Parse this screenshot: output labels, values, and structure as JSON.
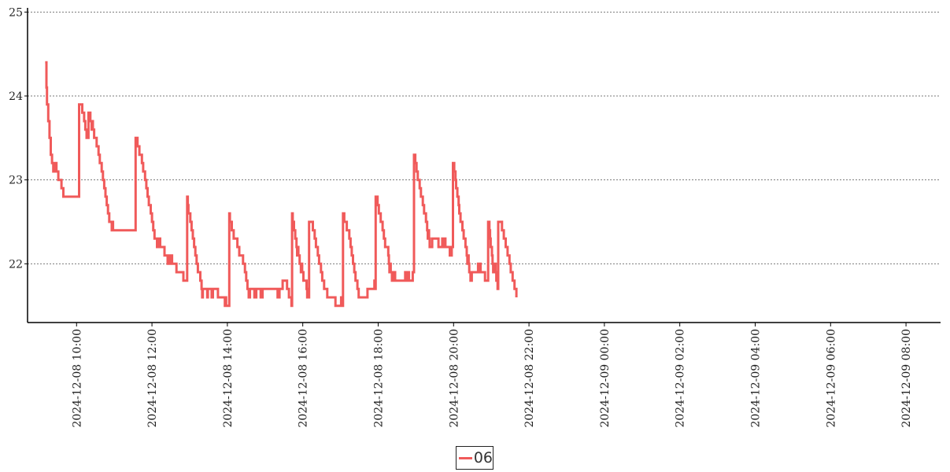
{
  "chart_data": {
    "type": "line",
    "title": "",
    "xlabel": "",
    "ylabel": "",
    "ylim": [
      21.3,
      25.05
    ],
    "yticks": [
      "22",
      "23",
      "24",
      "25"
    ],
    "xlim": [
      "2024-12-08 08:42",
      "2024-12-09 08:55"
    ],
    "xticks": [
      "2024-12-08 10:00",
      "2024-12-08 12:00",
      "2024-12-08 14:00",
      "2024-12-08 16:00",
      "2024-12-08 18:00",
      "2024-12-08 20:00",
      "2024-12-08 22:00",
      "2024-12-09 00:00",
      "2024-12-09 02:00",
      "2024-12-09 04:00",
      "2024-12-09 06:00",
      "2024-12-09 08:00"
    ],
    "grid": "horizontal dotted",
    "legend_position": "bottom-center",
    "series": [
      {
        "name": "06",
        "color": "#f05a5a",
        "points": [
          [
            "2024-12-08 09:10",
            24.4
          ],
          [
            "2024-12-08 09:12",
            24.1
          ],
          [
            "2024-12-08 09:13",
            23.9
          ],
          [
            "2024-12-08 09:15",
            23.7
          ],
          [
            "2024-12-08 09:17",
            23.5
          ],
          [
            "2024-12-08 09:19",
            23.3
          ],
          [
            "2024-12-08 09:21",
            23.2
          ],
          [
            "2024-12-08 09:23",
            23.1
          ],
          [
            "2024-12-08 09:24",
            23.2
          ],
          [
            "2024-12-08 09:25",
            23.1
          ],
          [
            "2024-12-08 09:27",
            23.2
          ],
          [
            "2024-12-08 09:28",
            23.1
          ],
          [
            "2024-12-08 09:31",
            23.0
          ],
          [
            "2024-12-08 09:36",
            22.9
          ],
          [
            "2024-12-08 09:39",
            22.8
          ],
          [
            "2024-12-08 10:04",
            23.9
          ],
          [
            "2024-12-08 10:09",
            23.8
          ],
          [
            "2024-12-08 10:12",
            23.7
          ],
          [
            "2024-12-08 10:14",
            23.6
          ],
          [
            "2024-12-08 10:16",
            23.5
          ],
          [
            "2024-12-08 10:19",
            23.8
          ],
          [
            "2024-12-08 10:22",
            23.7
          ],
          [
            "2024-12-08 10:24",
            23.6
          ],
          [
            "2024-12-08 10:25",
            23.7
          ],
          [
            "2024-12-08 10:26",
            23.6
          ],
          [
            "2024-12-08 10:28",
            23.5
          ],
          [
            "2024-12-08 10:32",
            23.4
          ],
          [
            "2024-12-08 10:35",
            23.3
          ],
          [
            "2024-12-08 10:37",
            23.2
          ],
          [
            "2024-12-08 10:40",
            23.1
          ],
          [
            "2024-12-08 10:42",
            23.0
          ],
          [
            "2024-12-08 10:44",
            22.9
          ],
          [
            "2024-12-08 10:46",
            22.8
          ],
          [
            "2024-12-08 10:48",
            22.7
          ],
          [
            "2024-12-08 10:50",
            22.6
          ],
          [
            "2024-12-08 10:52",
            22.5
          ],
          [
            "2024-12-08 10:56",
            22.4
          ],
          [
            "2024-12-08 10:57",
            22.5
          ],
          [
            "2024-12-08 10:58",
            22.4
          ],
          [
            "2024-12-08 10:59",
            22.4
          ],
          [
            "2024-12-08 11:34",
            23.5
          ],
          [
            "2024-12-08 11:37",
            23.4
          ],
          [
            "2024-12-08 11:40",
            23.3
          ],
          [
            "2024-12-08 11:44",
            23.2
          ],
          [
            "2024-12-08 11:46",
            23.1
          ],
          [
            "2024-12-08 11:49",
            23.0
          ],
          [
            "2024-12-08 11:51",
            22.9
          ],
          [
            "2024-12-08 11:53",
            22.8
          ],
          [
            "2024-12-08 11:55",
            22.7
          ],
          [
            "2024-12-08 11:58",
            22.6
          ],
          [
            "2024-12-08 12:00",
            22.5
          ],
          [
            "2024-12-08 12:02",
            22.4
          ],
          [
            "2024-12-08 12:04",
            22.3
          ],
          [
            "2024-12-08 12:08",
            22.2
          ],
          [
            "2024-12-08 12:09",
            22.3
          ],
          [
            "2024-12-08 12:10",
            22.2
          ],
          [
            "2024-12-08 12:12",
            22.3
          ],
          [
            "2024-12-08 12:13",
            22.2
          ],
          [
            "2024-12-08 12:20",
            22.1
          ],
          [
            "2024-12-08 12:25",
            22.0
          ],
          [
            "2024-12-08 12:26",
            22.1
          ],
          [
            "2024-12-08 12:29",
            22.0
          ],
          [
            "2024-12-08 12:30",
            22.1
          ],
          [
            "2024-12-08 12:32",
            22.0
          ],
          [
            "2024-12-08 12:39",
            21.9
          ],
          [
            "2024-12-08 12:50",
            21.8
          ],
          [
            "2024-12-08 12:55",
            21.8
          ],
          [
            "2024-12-08 12:56",
            22.8
          ],
          [
            "2024-12-08 12:57",
            22.7
          ],
          [
            "2024-12-08 12:58",
            22.6
          ],
          [
            "2024-12-08 13:01",
            22.5
          ],
          [
            "2024-12-08 13:03",
            22.4
          ],
          [
            "2024-12-08 13:05",
            22.3
          ],
          [
            "2024-12-08 13:07",
            22.2
          ],
          [
            "2024-12-08 13:09",
            22.1
          ],
          [
            "2024-12-08 13:11",
            22.0
          ],
          [
            "2024-12-08 13:13",
            21.9
          ],
          [
            "2024-12-08 13:17",
            21.8
          ],
          [
            "2024-12-08 13:19",
            21.7
          ],
          [
            "2024-12-08 13:20",
            21.6
          ],
          [
            "2024-12-08 13:21",
            21.7
          ],
          [
            "2024-12-08 13:28",
            21.6
          ],
          [
            "2024-12-08 13:29",
            21.7
          ],
          [
            "2024-12-08 13:35",
            21.6
          ],
          [
            "2024-12-08 13:37",
            21.7
          ],
          [
            "2024-12-08 13:45",
            21.6
          ],
          [
            "2024-12-08 13:56",
            21.5
          ],
          [
            "2024-12-08 13:57",
            21.6
          ],
          [
            "2024-12-08 13:58",
            21.5
          ],
          [
            "2024-12-08 14:03",
            22.6
          ],
          [
            "2024-12-08 14:04",
            22.5
          ],
          [
            "2024-12-08 14:07",
            22.4
          ],
          [
            "2024-12-08 14:10",
            22.3
          ],
          [
            "2024-12-08 14:16",
            22.2
          ],
          [
            "2024-12-08 14:19",
            22.1
          ],
          [
            "2024-12-08 14:25",
            22.0
          ],
          [
            "2024-12-08 14:28",
            21.9
          ],
          [
            "2024-12-08 14:30",
            21.8
          ],
          [
            "2024-12-08 14:32",
            21.7
          ],
          [
            "2024-12-08 14:34",
            21.6
          ],
          [
            "2024-12-08 14:36",
            21.7
          ],
          [
            "2024-12-08 14:43",
            21.6
          ],
          [
            "2024-12-08 14:46",
            21.7
          ],
          [
            "2024-12-08 14:53",
            21.6
          ],
          [
            "2024-12-08 14:56",
            21.7
          ],
          [
            "2024-12-08 15:20",
            21.6
          ],
          [
            "2024-12-08 15:23",
            21.7
          ],
          [
            "2024-12-08 15:28",
            21.8
          ],
          [
            "2024-12-08 15:35",
            21.7
          ],
          [
            "2024-12-08 15:38",
            21.6
          ],
          [
            "2024-12-08 15:42",
            21.5
          ],
          [
            "2024-12-08 15:43",
            22.6
          ],
          [
            "2024-12-08 15:44",
            22.5
          ],
          [
            "2024-12-08 15:46",
            22.4
          ],
          [
            "2024-12-08 15:48",
            22.3
          ],
          [
            "2024-12-08 15:50",
            22.2
          ],
          [
            "2024-12-08 15:51",
            22.1
          ],
          [
            "2024-12-08 15:52",
            22.2
          ],
          [
            "2024-12-08 15:53",
            22.1
          ],
          [
            "2024-12-08 15:55",
            22.0
          ],
          [
            "2024-12-08 15:57",
            21.9
          ],
          [
            "2024-12-08 15:58",
            22.0
          ],
          [
            "2024-12-08 15:59",
            21.9
          ],
          [
            "2024-12-08 16:01",
            21.8
          ],
          [
            "2024-12-08 16:06",
            21.7
          ],
          [
            "2024-12-08 16:07",
            21.6
          ],
          [
            "2024-12-08 16:10",
            22.5
          ],
          [
            "2024-12-08 16:16",
            22.4
          ],
          [
            "2024-12-08 16:19",
            22.3
          ],
          [
            "2024-12-08 16:21",
            22.2
          ],
          [
            "2024-12-08 16:24",
            22.1
          ],
          [
            "2024-12-08 16:26",
            22.0
          ],
          [
            "2024-12-08 16:29",
            21.9
          ],
          [
            "2024-12-08 16:31",
            21.8
          ],
          [
            "2024-12-08 16:34",
            21.7
          ],
          [
            "2024-12-08 16:39",
            21.6
          ],
          [
            "2024-12-08 16:52",
            21.5
          ],
          [
            "2024-12-08 17:01",
            21.6
          ],
          [
            "2024-12-08 17:02",
            21.5
          ],
          [
            "2024-12-08 17:04",
            22.6
          ],
          [
            "2024-12-08 17:06",
            22.5
          ],
          [
            "2024-12-08 17:10",
            22.4
          ],
          [
            "2024-12-08 17:14",
            22.3
          ],
          [
            "2024-12-08 17:16",
            22.2
          ],
          [
            "2024-12-08 17:18",
            22.1
          ],
          [
            "2024-12-08 17:20",
            22.0
          ],
          [
            "2024-12-08 17:22",
            21.9
          ],
          [
            "2024-12-08 17:24",
            21.8
          ],
          [
            "2024-12-08 17:27",
            21.7
          ],
          [
            "2024-12-08 17:29",
            21.6
          ],
          [
            "2024-12-08 17:43",
            21.7
          ],
          [
            "2024-12-08 17:51",
            21.7
          ],
          [
            "2024-12-08 17:54",
            21.8
          ],
          [
            "2024-12-08 17:55",
            21.7
          ],
          [
            "2024-12-08 17:56",
            22.8
          ],
          [
            "2024-12-08 17:59",
            22.7
          ],
          [
            "2024-12-08 18:01",
            22.6
          ],
          [
            "2024-12-08 18:04",
            22.5
          ],
          [
            "2024-12-08 18:07",
            22.4
          ],
          [
            "2024-12-08 18:09",
            22.3
          ],
          [
            "2024-12-08 18:11",
            22.2
          ],
          [
            "2024-12-08 18:16",
            22.1
          ],
          [
            "2024-12-08 18:17",
            22.0
          ],
          [
            "2024-12-08 18:18",
            21.9
          ],
          [
            "2024-12-08 18:19",
            22.0
          ],
          [
            "2024-12-08 18:20",
            21.9
          ],
          [
            "2024-12-08 18:22",
            21.8
          ],
          [
            "2024-12-08 18:24",
            21.9
          ],
          [
            "2024-12-08 18:25",
            21.8
          ],
          [
            "2024-12-08 18:26",
            21.9
          ],
          [
            "2024-12-08 18:27",
            21.8
          ],
          [
            "2024-12-08 18:43",
            21.9
          ],
          [
            "2024-12-08 18:46",
            21.8
          ],
          [
            "2024-12-08 18:48",
            21.9
          ],
          [
            "2024-12-08 18:49",
            21.8
          ],
          [
            "2024-12-08 18:55",
            21.9
          ],
          [
            "2024-12-08 18:57",
            23.3
          ],
          [
            "2024-12-08 18:59",
            23.2
          ],
          [
            "2024-12-08 19:01",
            23.1
          ],
          [
            "2024-12-08 19:03",
            23.0
          ],
          [
            "2024-12-08 19:06",
            22.9
          ],
          [
            "2024-12-08 19:08",
            22.8
          ],
          [
            "2024-12-08 19:11",
            22.7
          ],
          [
            "2024-12-08 19:13",
            22.6
          ],
          [
            "2024-12-08 19:16",
            22.5
          ],
          [
            "2024-12-08 19:18",
            22.4
          ],
          [
            "2024-12-08 19:19",
            22.3
          ],
          [
            "2024-12-08 19:20",
            22.4
          ],
          [
            "2024-12-08 19:21",
            22.3
          ],
          [
            "2024-12-08 19:22",
            22.2
          ],
          [
            "2024-12-08 19:26",
            22.3
          ],
          [
            "2024-12-08 19:36",
            22.2
          ],
          [
            "2024-12-08 19:42",
            22.3
          ],
          [
            "2024-12-08 19:43",
            22.2
          ],
          [
            "2024-12-08 19:46",
            22.3
          ],
          [
            "2024-12-08 19:47",
            22.2
          ],
          [
            "2024-12-08 19:54",
            22.1
          ],
          [
            "2024-12-08 19:55",
            22.2
          ],
          [
            "2024-12-08 19:56",
            22.1
          ],
          [
            "2024-12-08 19:57",
            22.2
          ],
          [
            "2024-12-08 19:59",
            23.2
          ],
          [
            "2024-12-08 20:01",
            23.1
          ],
          [
            "2024-12-08 20:03",
            23.0
          ],
          [
            "2024-12-08 20:04",
            22.9
          ],
          [
            "2024-12-08 20:06",
            22.8
          ],
          [
            "2024-12-08 20:08",
            22.7
          ],
          [
            "2024-12-08 20:09",
            22.6
          ],
          [
            "2024-12-08 20:11",
            22.5
          ],
          [
            "2024-12-08 20:14",
            22.4
          ],
          [
            "2024-12-08 20:16",
            22.3
          ],
          [
            "2024-12-08 20:19",
            22.2
          ],
          [
            "2024-12-08 20:21",
            22.1
          ],
          [
            "2024-12-08 20:22",
            22.0
          ],
          [
            "2024-12-08 20:23",
            22.1
          ],
          [
            "2024-12-08 20:24",
            22.0
          ],
          [
            "2024-12-08 20:25",
            21.9
          ],
          [
            "2024-12-08 20:27",
            21.8
          ],
          [
            "2024-12-08 20:29",
            21.9
          ],
          [
            "2024-12-08 20:39",
            22.0
          ],
          [
            "2024-12-08 20:40",
            21.9
          ],
          [
            "2024-12-08 20:42",
            22.0
          ],
          [
            "2024-12-08 20:43",
            21.9
          ],
          [
            "2024-12-08 20:50",
            21.8
          ],
          [
            "2024-12-08 20:54",
            21.8
          ],
          [
            "2024-12-08 20:55",
            22.5
          ],
          [
            "2024-12-08 20:57",
            22.4
          ],
          [
            "2024-12-08 20:58",
            22.3
          ],
          [
            "2024-12-08 20:59",
            22.2
          ],
          [
            "2024-12-08 21:01",
            22.1
          ],
          [
            "2024-12-08 21:02",
            22.0
          ],
          [
            "2024-12-08 21:03",
            21.9
          ],
          [
            "2024-12-08 21:04",
            22.0
          ],
          [
            "2024-12-08 21:05",
            21.9
          ],
          [
            "2024-12-08 21:06",
            22.0
          ],
          [
            "2024-12-08 21:07",
            21.9
          ],
          [
            "2024-12-08 21:08",
            21.8
          ],
          [
            "2024-12-08 21:10",
            21.7
          ],
          [
            "2024-12-08 21:11",
            22.5
          ],
          [
            "2024-12-08 21:17",
            22.4
          ],
          [
            "2024-12-08 21:20",
            22.3
          ],
          [
            "2024-12-08 21:23",
            22.2
          ],
          [
            "2024-12-08 21:26",
            22.1
          ],
          [
            "2024-12-08 21:29",
            22.0
          ],
          [
            "2024-12-08 21:31",
            21.9
          ],
          [
            "2024-12-08 21:34",
            21.8
          ],
          [
            "2024-12-08 21:37",
            21.7
          ],
          [
            "2024-12-08 21:40",
            21.6
          ]
        ]
      }
    ]
  },
  "legend": {
    "label": "06",
    "swatch_color": "#f05a5a"
  }
}
